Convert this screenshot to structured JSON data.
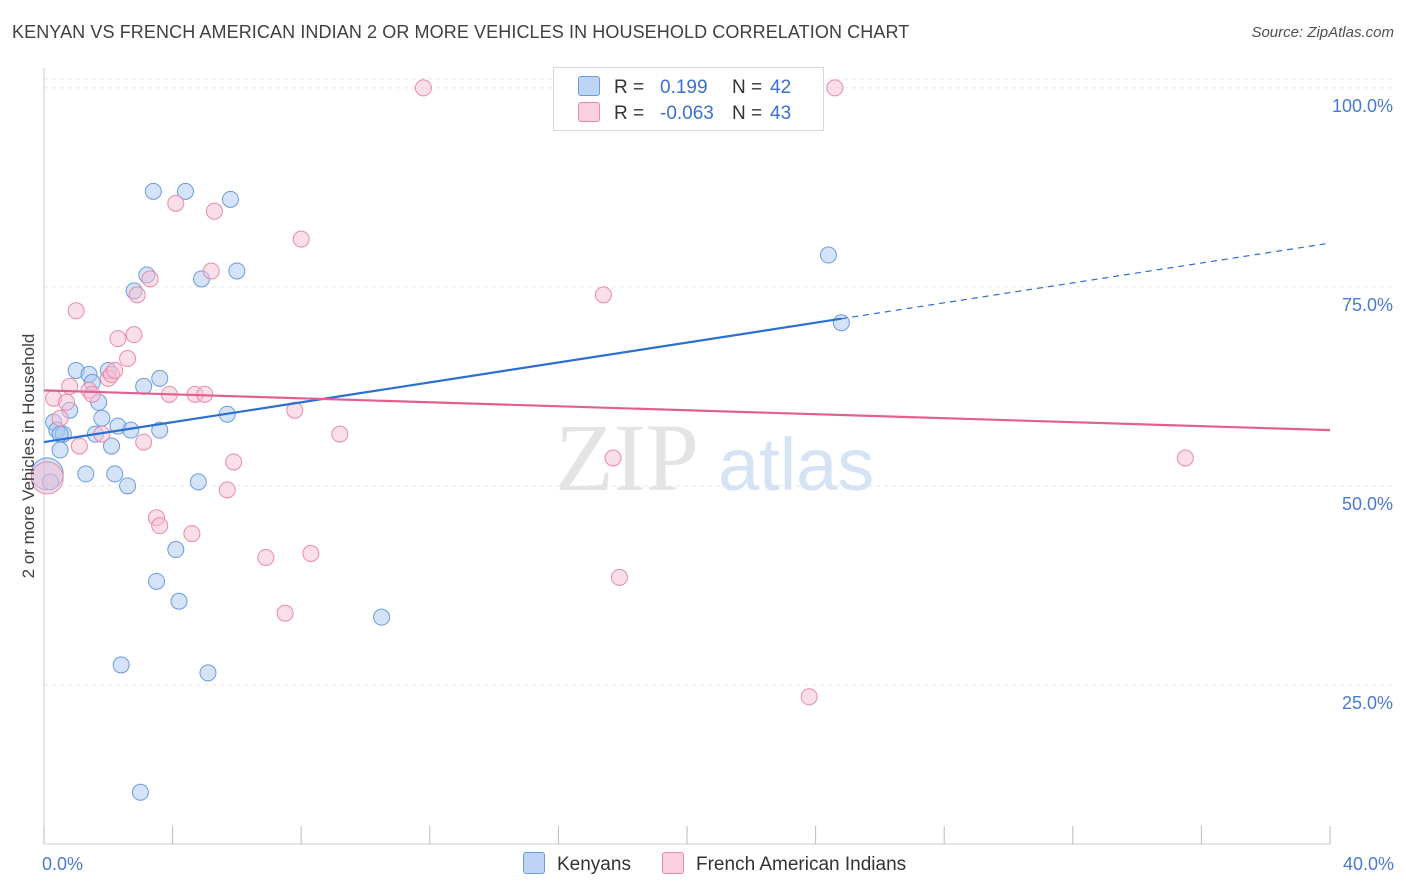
{
  "title": "KENYAN VS FRENCH AMERICAN INDIAN 2 OR MORE VEHICLES IN HOUSEHOLD CORRELATION CHART",
  "source": "Source: ZipAtlas.com",
  "watermark": {
    "zip": "ZIP",
    "atlas": "atlas"
  },
  "chart_data": {
    "type": "scatter",
    "title": "KENYAN VS FRENCH AMERICAN INDIAN 2 OR MORE VEHICLES IN HOUSEHOLD CORRELATION CHART",
    "ylabel": "2 or more Vehicles in Household",
    "xlabel": "",
    "xlim": [
      0,
      40
    ],
    "ylim": [
      5,
      102
    ],
    "x_ticks": [
      {
        "value": 0,
        "label": "0.0%"
      },
      {
        "value": 40,
        "label": "40.0%"
      }
    ],
    "y_ticks": [
      {
        "value": 25,
        "label": "25.0%"
      },
      {
        "value": 50,
        "label": "50.0%"
      },
      {
        "value": 75,
        "label": "75.0%"
      },
      {
        "value": 100,
        "label": "100.0%"
      }
    ],
    "grid": true,
    "legend_position": "top-center",
    "series": [
      {
        "name": "Kenyans",
        "color": "#a9c8f2",
        "stroke": "#6a9be0",
        "line_color": "#2a6fd1",
        "r_label": "R =",
        "r_value": "0.199",
        "n_label": "N =",
        "n_value": "42",
        "trend": {
          "x0": 0,
          "y0": 55.5,
          "x1": 24.8,
          "y1": 71,
          "x_dash_end": 40,
          "y_dash_end": 80.5
        },
        "points": [
          [
            0.1,
            51.5
          ],
          [
            0.3,
            58
          ],
          [
            0.4,
            57
          ],
          [
            0.5,
            54.5
          ],
          [
            0.6,
            56.5
          ],
          [
            0.8,
            59.5
          ],
          [
            1.0,
            64.5
          ],
          [
            1.3,
            51.5
          ],
          [
            1.4,
            64
          ],
          [
            1.5,
            63
          ],
          [
            1.6,
            56.5
          ],
          [
            1.7,
            60.5
          ],
          [
            1.8,
            58.5
          ],
          [
            2.0,
            64.5
          ],
          [
            2.1,
            55
          ],
          [
            2.2,
            51.5
          ],
          [
            2.3,
            57.5
          ],
          [
            2.4,
            27.5
          ],
          [
            2.6,
            50
          ],
          [
            2.7,
            57
          ],
          [
            2.8,
            74.5
          ],
          [
            3.0,
            11.5
          ],
          [
            3.1,
            62.5
          ],
          [
            3.2,
            76.5
          ],
          [
            3.4,
            87
          ],
          [
            3.5,
            38
          ],
          [
            3.6,
            57
          ],
          [
            3.6,
            63.5
          ],
          [
            4.1,
            42
          ],
          [
            4.2,
            35.5
          ],
          [
            4.4,
            87
          ],
          [
            4.8,
            50.5
          ],
          [
            4.9,
            76
          ],
          [
            5.1,
            26.5
          ],
          [
            5.7,
            59
          ],
          [
            5.8,
            86
          ],
          [
            6.0,
            77
          ],
          [
            10.5,
            33.5
          ],
          [
            24.4,
            79
          ],
          [
            24.8,
            70.5
          ],
          [
            0.2,
            50.5
          ],
          [
            0.5,
            56.5
          ]
        ]
      },
      {
        "name": "French American Indians",
        "color": "#f7bfd2",
        "stroke": "#e88aaa",
        "line_color": "#e2608f",
        "r_label": "R =",
        "r_value": "-0.063",
        "n_label": "N =",
        "n_value": "43",
        "trend": {
          "x0": 0,
          "y0": 62,
          "x1": 40,
          "y1": 57
        },
        "points": [
          [
            0.1,
            51
          ],
          [
            0.3,
            61
          ],
          [
            0.5,
            58.5
          ],
          [
            0.7,
            60.5
          ],
          [
            0.8,
            62.5
          ],
          [
            1.0,
            72
          ],
          [
            1.1,
            55
          ],
          [
            1.4,
            62
          ],
          [
            1.5,
            61.5
          ],
          [
            1.8,
            56.5
          ],
          [
            2.0,
            63.5
          ],
          [
            2.1,
            64
          ],
          [
            2.3,
            68.5
          ],
          [
            2.6,
            66
          ],
          [
            2.8,
            69
          ],
          [
            2.9,
            74
          ],
          [
            3.1,
            55.5
          ],
          [
            3.3,
            76
          ],
          [
            3.5,
            46
          ],
          [
            3.6,
            45
          ],
          [
            3.9,
            61.5
          ],
          [
            4.1,
            85.5
          ],
          [
            4.6,
            44
          ],
          [
            4.7,
            61.5
          ],
          [
            5.0,
            61.5
          ],
          [
            5.2,
            77
          ],
          [
            5.3,
            84.5
          ],
          [
            5.7,
            49.5
          ],
          [
            5.9,
            53
          ],
          [
            6.9,
            41
          ],
          [
            7.5,
            34
          ],
          [
            7.8,
            59.5
          ],
          [
            8.0,
            81
          ],
          [
            8.3,
            41.5
          ],
          [
            9.2,
            56.5
          ],
          [
            11.8,
            100
          ],
          [
            17.4,
            74
          ],
          [
            17.7,
            53.5
          ],
          [
            17.9,
            38.5
          ],
          [
            23.8,
            23.5
          ],
          [
            24.6,
            100
          ],
          [
            35.5,
            53.5
          ],
          [
            2.2,
            64.5
          ]
        ]
      }
    ]
  }
}
